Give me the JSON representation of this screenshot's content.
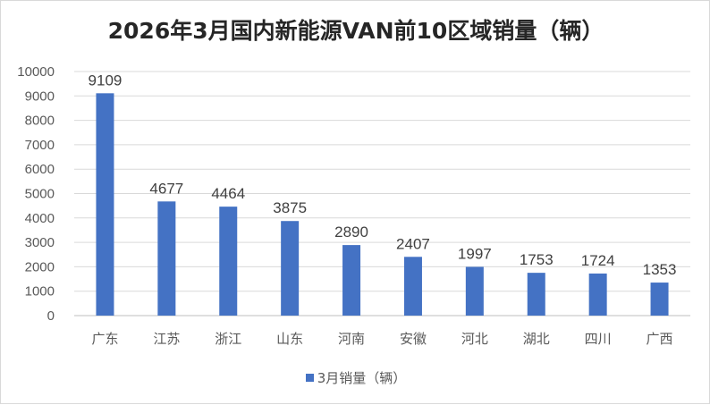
{
  "chart_data": {
    "type": "bar",
    "title": "2026年3月国内新能源VAN前10区域销量（辆）",
    "categories": [
      "广东",
      "江苏",
      "浙江",
      "山东",
      "河南",
      "安徽",
      "河北",
      "湖北",
      "四川",
      "广西"
    ],
    "series": [
      {
        "name": "3月销量（辆）",
        "values": [
          9109,
          4677,
          4464,
          3875,
          2890,
          2407,
          1997,
          1753,
          1724,
          1353
        ],
        "color": "#4472c4"
      }
    ],
    "ylim": [
      0,
      10000
    ],
    "yticks": [
      0,
      1000,
      2000,
      3000,
      4000,
      5000,
      6000,
      7000,
      8000,
      9000,
      10000
    ],
    "grid": true,
    "legend": "bottom",
    "data_labels": true
  }
}
